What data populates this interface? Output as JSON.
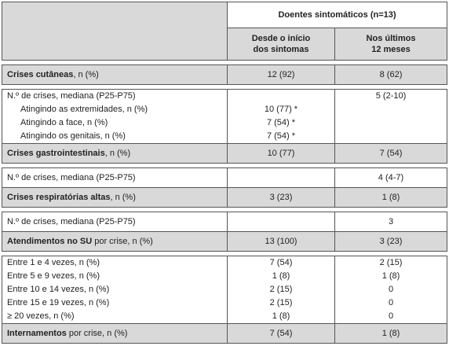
{
  "header": {
    "group": "Doentes sintomáticos (n=13)",
    "col_since": [
      "Desde o início",
      "dos sintomas"
    ],
    "col_last": [
      "Nos últimos",
      "12 meses"
    ]
  },
  "sections": {
    "cutaneous": {
      "title": "Crises cutâneas",
      "unit": ", n (%)",
      "since": "12 (92)",
      "last": "8 (62)",
      "median_label": "N.º de crises, mediana (P25-P75)",
      "median_last": "5 (2-10)",
      "sites": [
        {
          "label": "Atingindo as extremidades, n (%)",
          "since": "10 (77) *"
        },
        {
          "label": "Atingindo a face, n (%)",
          "since": "7 (54) *"
        },
        {
          "label": "Atingindo os genitais, n (%)",
          "since": "7 (54) *"
        }
      ]
    },
    "gastro": {
      "title": "Crises gastrointestinais",
      "unit": ", n (%)",
      "since": "10 (77)",
      "last": "7 (54)",
      "median_label": "N.º de crises, mediana (P25-P75)",
      "median_last": "4 (4-7)"
    },
    "resp": {
      "title": "Crises respiratórias altas",
      "unit": ", n (%)",
      "since": "3 (23)",
      "last": "1 (8)",
      "median_label": "N.º de crises, mediana (P25-P75)",
      "median_last": "3"
    },
    "er": {
      "title": "Atendimentos no SU",
      "unit": " por crise, n (%)",
      "since": "13 (100)",
      "last": "3 (23)",
      "rows": [
        {
          "label": "Entre 1 e 4 vezes, n (%)",
          "since": "7 (54)",
          "last": "2 (15)"
        },
        {
          "label": "Entre 5 e 9 vezes, n (%)",
          "since": "1 (8)",
          "last": "1 (8)"
        },
        {
          "label": "Entre 10 e 14 vezes, n (%)",
          "since": "2 (15)",
          "last": "0"
        },
        {
          "label": "Entre 15 e 19 vezes, n (%)",
          "since": "2 (15)",
          "last": "0"
        },
        {
          "label": "≥ 20 vezes, n (%)",
          "since": "1 (8)",
          "last": "0"
        }
      ]
    },
    "hosp": {
      "title": "Internamentos",
      "unit": " por crise, n (%)",
      "since": "7 (54)",
      "last": "1 (8)"
    }
  }
}
